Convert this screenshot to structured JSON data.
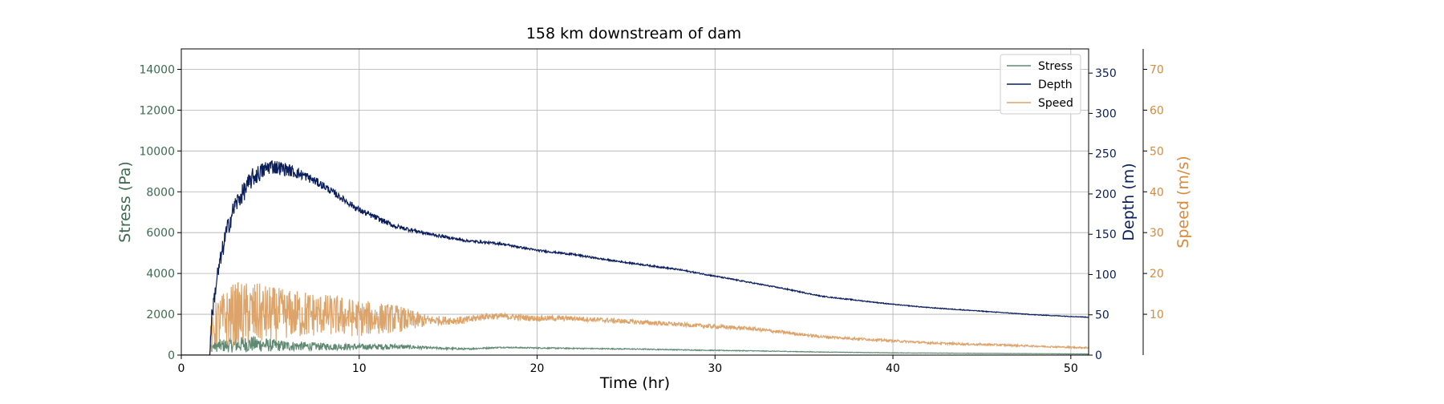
{
  "chart_data": {
    "type": "line",
    "title": "158 km downstream of dam",
    "xlabel": "Time (hr)",
    "xlim": [
      0,
      51
    ],
    "xticks": [
      0,
      10,
      20,
      30,
      40,
      50
    ],
    "grid": true,
    "legend": {
      "placement": "top-right",
      "entries": [
        "Stress",
        "Depth",
        "Speed"
      ]
    },
    "axes": [
      {
        "id": "stress",
        "label": "Stress (Pa)",
        "ylim": [
          0,
          15000
        ],
        "ticks": [
          0,
          2000,
          4000,
          6000,
          8000,
          10000,
          12000,
          14000
        ],
        "color": "#3d6b4f"
      },
      {
        "id": "depth",
        "label": "Depth (m)",
        "ylim": [
          0,
          380
        ],
        "ticks": [
          0,
          50,
          100,
          150,
          200,
          250,
          300,
          350
        ],
        "color": "#0b1e5c"
      },
      {
        "id": "speed",
        "label": "Speed (m/s)",
        "ylim": [
          0,
          75
        ],
        "ticks": [
          10,
          20,
          30,
          40,
          50,
          60,
          70
        ],
        "color": "#d98a3a"
      }
    ],
    "series": [
      {
        "name": "Stress",
        "axis": "stress",
        "color": "#5f8a72",
        "x": [
          0,
          1.6,
          1.65,
          2,
          3,
          4,
          5,
          6,
          8,
          10,
          12,
          14,
          16,
          18,
          20,
          22,
          24,
          26,
          28,
          30,
          32,
          34,
          36,
          38,
          40,
          42,
          44,
          46,
          48,
          50,
          51
        ],
        "y": [
          0,
          0,
          400,
          450,
          500,
          550,
          480,
          450,
          420,
          400,
          420,
          350,
          300,
          380,
          350,
          330,
          310,
          290,
          260,
          230,
          210,
          180,
          150,
          130,
          110,
          100,
          90,
          80,
          70,
          60,
          55
        ],
        "noise": [
          0,
          0,
          250,
          300,
          380,
          400,
          320,
          250,
          180,
          150,
          130,
          60,
          40,
          30,
          30,
          30,
          25,
          25,
          20,
          20,
          15,
          15,
          12,
          10,
          10,
          8,
          8,
          8,
          6,
          6,
          6
        ]
      },
      {
        "name": "Depth",
        "axis": "depth",
        "color": "#0b1e5c",
        "x": [
          0,
          1.6,
          1.7,
          2,
          2.5,
          3,
          4,
          5,
          6,
          7,
          8,
          9,
          10,
          12,
          14,
          16,
          18,
          20,
          22,
          24,
          26,
          28,
          30,
          32,
          34,
          36,
          38,
          40,
          42,
          44,
          46,
          48,
          50,
          51
        ],
        "y": [
          0,
          0,
          45,
          95,
          150,
          185,
          220,
          235,
          230,
          222,
          210,
          195,
          180,
          160,
          150,
          142,
          138,
          130,
          125,
          118,
          112,
          106,
          98,
          90,
          82,
          73,
          68,
          63,
          59,
          56,
          53,
          50,
          48,
          47
        ],
        "noise": [
          0,
          0,
          10,
          12,
          12,
          12,
          12,
          10,
          8,
          6,
          5,
          4,
          4,
          3,
          2,
          1.5,
          1.5,
          1.2,
          1.2,
          1,
          1,
          1,
          0.8,
          0.8,
          0.8,
          0.6,
          0.6,
          0.5,
          0.5,
          0.5,
          0.4,
          0.4,
          0.4,
          0.4
        ]
      },
      {
        "name": "Speed",
        "axis": "speed",
        "color": "#dca46a",
        "x": [
          0,
          1.6,
          1.65,
          2,
          3,
          4,
          5,
          6,
          7,
          8,
          9,
          10,
          11,
          12,
          13,
          14,
          15,
          16,
          17,
          18,
          20,
          22,
          24,
          26,
          28,
          30,
          32,
          34,
          36,
          38,
          40,
          42,
          44,
          46,
          48,
          50,
          51
        ],
        "y": [
          0,
          0,
          4,
          8,
          10,
          10,
          10,
          10,
          10,
          10,
          9.5,
          9,
          9,
          9,
          8.5,
          8.5,
          8.5,
          8.5,
          9.5,
          9.5,
          9,
          9,
          8.5,
          8,
          7.5,
          7,
          6.5,
          5.5,
          4.5,
          4,
          3.5,
          3,
          2.7,
          2.5,
          2.2,
          1.9,
          1.8
        ],
        "noise": [
          0,
          0,
          4,
          6,
          8,
          8,
          7,
          6,
          6,
          5,
          5,
          4.5,
          4,
          3.5,
          2.5,
          1.2,
          1,
          1,
          0.8,
          0.8,
          0.7,
          0.6,
          0.6,
          0.6,
          0.5,
          0.5,
          0.45,
          0.4,
          0.35,
          0.3,
          0.3,
          0.25,
          0.25,
          0.25,
          0.2,
          0.2,
          0.2
        ]
      }
    ]
  }
}
